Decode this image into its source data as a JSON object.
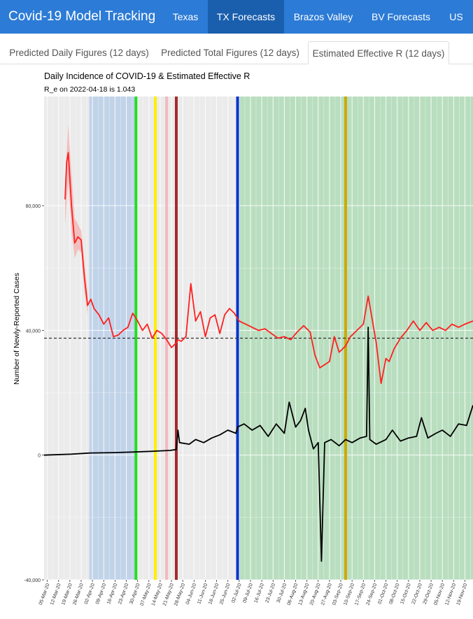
{
  "navbar": {
    "brand": "Covid-19 Model Tracking",
    "items": [
      {
        "label": "Texas",
        "active": false
      },
      {
        "label": "TX Forecasts",
        "active": true
      },
      {
        "label": "Brazos Valley",
        "active": false
      },
      {
        "label": "BV Forecasts",
        "active": false
      },
      {
        "label": "US",
        "active": false
      }
    ],
    "color": "#2c7bd6",
    "active_color": "#1a5fad"
  },
  "tabs": [
    {
      "label": "Predicted Daily Figures (12 days)",
      "active": false
    },
    {
      "label": "Predicted Total Figures (12 days)",
      "active": false
    },
    {
      "label": "Estimated Effective R (12 days)",
      "active": true
    }
  ],
  "chart_data": {
    "type": "line",
    "title": "Daily Incidence of COVID-19 & Estimated Effective R",
    "subtitle": "R_e on 2022-04-18 is 1.043",
    "xlabel": "",
    "ylabel": "Number of Newly-Reported Cases",
    "ylim": [
      -40000,
      115000
    ],
    "xlim": [
      "2020-03-03",
      "2020-11-24"
    ],
    "yticks": [
      -40000,
      0,
      40000,
      80000
    ],
    "ytick_labels": [
      "-40,000",
      "0",
      "40,000",
      "80,000"
    ],
    "xtick_labels": [
      "05-Mar-20",
      "12-Mar-20",
      "19-Mar-20",
      "26-Mar-20",
      "02-Apr-20",
      "09-Apr-20",
      "16-Apr-20",
      "23-Apr-20",
      "30-Apr-20",
      "07-May-20",
      "14-May-20",
      "21-May-20",
      "28-May-20",
      "04-Jun-20",
      "11-Jun-20",
      "18-Jun-20",
      "25-Jun-20",
      "02-Jul-20",
      "09-Jul-20",
      "16-Jul-20",
      "23-Jul-20",
      "30-Jul-20",
      "06-Aug-20",
      "13-Aug-20",
      "20-Aug-20",
      "27-Aug-20",
      "03-Sep-20",
      "10-Sep-20",
      "17-Sep-20",
      "24-Sep-20",
      "01-Oct-20",
      "08-Oct-20",
      "15-Oct-20",
      "22-Oct-20",
      "29-Oct-20",
      "05-Nov-20",
      "12-Nov-20",
      "19-Nov-20"
    ],
    "grid": true,
    "reference_line": {
      "y": 37500,
      "style": "dashed",
      "color": "#333333"
    },
    "shaded_regions": [
      {
        "start": "2020-03-31",
        "end": "2020-04-29",
        "color": "#9fbfe8"
      },
      {
        "start": "2020-07-01",
        "end": "2020-11-24",
        "color": "#8fd39a"
      }
    ],
    "vertical_lines": [
      {
        "x": "2020-04-29",
        "color": "#22dd22"
      },
      {
        "x": "2020-05-11",
        "color": "#ffee00"
      },
      {
        "x": "2020-05-18",
        "color": "#f4b8c0"
      },
      {
        "x": "2020-05-24",
        "color": "#a52a2a"
      },
      {
        "x": "2020-07-01",
        "color": "#0033cc"
      },
      {
        "x": "2020-09-06",
        "color": "#ccaa00"
      }
    ],
    "series": [
      {
        "color": "#ff2020",
        "band_color": "#f4b4b4",
        "x": [
          "2020-03-16",
          "2020-03-17",
          "2020-03-18",
          "2020-03-20",
          "2020-03-22",
          "2020-03-24",
          "2020-03-26",
          "2020-03-28",
          "2020-03-30",
          "2020-04-01",
          "2020-04-03",
          "2020-04-06",
          "2020-04-09",
          "2020-04-12",
          "2020-04-15",
          "2020-04-18",
          "2020-04-21",
          "2020-04-24",
          "2020-04-27",
          "2020-04-30",
          "2020-05-03",
          "2020-05-06",
          "2020-05-09",
          "2020-05-12",
          "2020-05-15",
          "2020-05-18",
          "2020-05-21",
          "2020-05-24",
          "2020-05-25",
          "2020-05-27",
          "2020-05-30",
          "2020-06-02",
          "2020-06-05",
          "2020-06-08",
          "2020-06-11",
          "2020-06-14",
          "2020-06-17",
          "2020-06-20",
          "2020-06-23",
          "2020-06-26",
          "2020-06-29",
          "2020-07-02",
          "2020-07-06",
          "2020-07-10",
          "2020-07-14",
          "2020-07-18",
          "2020-07-22",
          "2020-07-26",
          "2020-07-30",
          "2020-08-03",
          "2020-08-07",
          "2020-08-11",
          "2020-08-15",
          "2020-08-18",
          "2020-08-21",
          "2020-08-24",
          "2020-08-27",
          "2020-08-30",
          "2020-09-02",
          "2020-09-06",
          "2020-09-09",
          "2020-09-13",
          "2020-09-17",
          "2020-09-20",
          "2020-09-22",
          "2020-09-25",
          "2020-09-28",
          "2020-10-01",
          "2020-10-03",
          "2020-10-06",
          "2020-10-10",
          "2020-10-14",
          "2020-10-18",
          "2020-10-22",
          "2020-10-26",
          "2020-10-30",
          "2020-11-03",
          "2020-11-07",
          "2020-11-11",
          "2020-11-15",
          "2020-11-19",
          "2020-11-24"
        ],
        "values": [
          82000,
          94000,
          97000,
          80000,
          68000,
          70000,
          69000,
          57000,
          48000,
          50000,
          47000,
          45000,
          42000,
          44000,
          38000,
          38500,
          40000,
          41000,
          45500,
          43000,
          40000,
          42000,
          37500,
          40000,
          39000,
          37000,
          34500,
          36000,
          37000,
          36500,
          38000,
          55000,
          43000,
          46000,
          38000,
          44000,
          45000,
          39000,
          45000,
          47000,
          45500,
          43000,
          42000,
          41000,
          40000,
          40500,
          39000,
          37500,
          38000,
          37000,
          39500,
          41500,
          39500,
          32000,
          28000,
          29000,
          30000,
          38000,
          33000,
          35000,
          38000,
          40000,
          42000,
          51000,
          45000,
          36000,
          23000,
          31000,
          30000,
          34000,
          37500,
          40000,
          43000,
          40000,
          42500,
          40000,
          41000,
          40000,
          42000,
          41000,
          42000,
          43000
        ],
        "band": {
          "x": [
            "2020-03-16",
            "2020-03-18",
            "2020-03-20",
            "2020-03-22",
            "2020-03-24",
            "2020-03-26",
            "2020-03-28",
            "2020-03-30"
          ],
          "upper": [
            88000,
            106000,
            90000,
            76000,
            74000,
            72000,
            62000,
            52000
          ],
          "lower": [
            74000,
            88000,
            72000,
            63000,
            66000,
            65000,
            53000,
            45000
          ]
        }
      },
      {
        "color": "#000000",
        "x": [
          "2020-03-03",
          "2020-03-20",
          "2020-04-01",
          "2020-04-15",
          "2020-04-28",
          "2020-05-08",
          "2020-05-20",
          "2020-05-24",
          "2020-05-25",
          "2020-05-26",
          "2020-06-01",
          "2020-06-05",
          "2020-06-10",
          "2020-06-15",
          "2020-06-20",
          "2020-06-25",
          "2020-06-30",
          "2020-07-01",
          "2020-07-05",
          "2020-07-10",
          "2020-07-15",
          "2020-07-20",
          "2020-07-25",
          "2020-07-30",
          "2020-08-02",
          "2020-08-06",
          "2020-08-09",
          "2020-08-12",
          "2020-08-14",
          "2020-08-17",
          "2020-08-20",
          "2020-08-22",
          "2020-08-24",
          "2020-08-28",
          "2020-09-02",
          "2020-09-06",
          "2020-09-10",
          "2020-09-15",
          "2020-09-19",
          "2020-09-20",
          "2020-09-21",
          "2020-09-25",
          "2020-10-01",
          "2020-10-05",
          "2020-10-10",
          "2020-10-15",
          "2020-10-20",
          "2020-10-23",
          "2020-10-27",
          "2020-11-01",
          "2020-11-05",
          "2020-11-10",
          "2020-11-15",
          "2020-11-20",
          "2020-11-24"
        ],
        "values": [
          0,
          300,
          700,
          800,
          1000,
          1200,
          1500,
          1800,
          8000,
          4000,
          3500,
          5000,
          4000,
          5500,
          6500,
          8000,
          7000,
          9000,
          10000,
          8000,
          9500,
          6000,
          10000,
          7000,
          17000,
          9000,
          11000,
          15000,
          8000,
          2000,
          4000,
          -34000,
          4000,
          5000,
          3000,
          5000,
          4000,
          5500,
          6000,
          41000,
          5000,
          3500,
          5000,
          8000,
          4500,
          5500,
          6000,
          12000,
          5500,
          7000,
          8000,
          6000,
          10000,
          9500,
          16000
        ]
      }
    ]
  }
}
